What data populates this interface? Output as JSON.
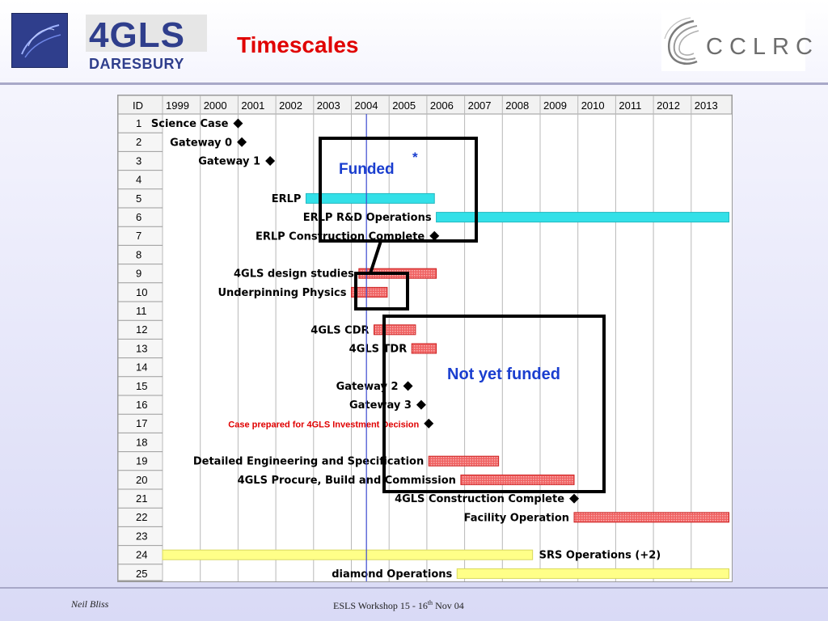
{
  "header": {
    "logo_left_big": "4GLS",
    "logo_left_small": "DARESBURY",
    "title": "Timescales",
    "logo_right_text": "CCLRC"
  },
  "gantt": {
    "id_header": "ID",
    "years": [
      "1999",
      "2000",
      "2001",
      "2002",
      "2003",
      "2004",
      "2005",
      "2006",
      "2007",
      "2008",
      "2009",
      "2010",
      "2011",
      "2012",
      "2013"
    ],
    "tasks": [
      {
        "id": "1",
        "label": "Science Case",
        "kind": "milestone",
        "at": 2001.0,
        "label_color": "#000000"
      },
      {
        "id": "2",
        "label": "Gateway 0",
        "kind": "milestone",
        "at": 2001.1,
        "label_color": "#000000"
      },
      {
        "id": "3",
        "label": "Gateway 1",
        "kind": "milestone",
        "at": 2001.85,
        "label_color": "#000000"
      },
      {
        "id": "4",
        "label": "",
        "kind": "none",
        "label_color": "#000000"
      },
      {
        "id": "5",
        "label": "ERLP",
        "kind": "bar",
        "start": 2002.8,
        "end": 2006.2,
        "color": "#33e0e8",
        "label_color": "#000000"
      },
      {
        "id": "6",
        "label": "ERLP R&D Operations",
        "kind": "bar",
        "start": 2006.25,
        "end": 2014.0,
        "color": "#33e0e8",
        "label_color": "#000000"
      },
      {
        "id": "7",
        "label": "ERLP Construction Complete",
        "kind": "milestone",
        "at": 2006.2,
        "label_color": "#000000"
      },
      {
        "id": "8",
        "label": "",
        "kind": "none",
        "label_color": "#000000"
      },
      {
        "id": "9",
        "label": "4GLS design studies",
        "kind": "bar",
        "start": 2004.2,
        "end": 2006.25,
        "color": "#f06262",
        "label_color": "#000000"
      },
      {
        "id": "10",
        "label": "Underpinning Physics",
        "kind": "bar",
        "start": 2004.0,
        "end": 2004.95,
        "color": "#f06262",
        "label_color": "#000000"
      },
      {
        "id": "11",
        "label": "",
        "kind": "none",
        "label_color": "#000000"
      },
      {
        "id": "12",
        "label": "4GLS CDR",
        "kind": "bar",
        "start": 2004.6,
        "end": 2005.7,
        "color": "#f06262",
        "label_color": "#000000"
      },
      {
        "id": "13",
        "label": "4GLS TDR",
        "kind": "bar",
        "start": 2005.6,
        "end": 2006.25,
        "color": "#f06262",
        "label_color": "#000000"
      },
      {
        "id": "14",
        "label": "",
        "kind": "none",
        "label_color": "#000000"
      },
      {
        "id": "15",
        "label": "Gateway 2",
        "kind": "milestone",
        "at": 2005.5,
        "label_color": "#000000"
      },
      {
        "id": "16",
        "label": "Gateway 3",
        "kind": "milestone",
        "at": 2005.85,
        "label_color": "#000000"
      },
      {
        "id": "17",
        "label": "Case prepared for 4GLS Investment Decision",
        "kind": "milestone",
        "at": 2006.05,
        "label_color": "#e00000"
      },
      {
        "id": "18",
        "label": "",
        "kind": "none",
        "label_color": "#000000"
      },
      {
        "id": "19",
        "label": "Detailed Engineering and Specification",
        "kind": "bar",
        "start": 2006.05,
        "end": 2007.9,
        "color": "#f06262",
        "label_color": "#000000"
      },
      {
        "id": "20",
        "label": "4GLS Procure, Build and Commission",
        "kind": "bar",
        "start": 2006.9,
        "end": 2009.9,
        "color": "#f06262",
        "label_color": "#000000"
      },
      {
        "id": "21",
        "label": "4GLS Construction Complete",
        "kind": "milestone",
        "at": 2009.9,
        "label_color": "#000000"
      },
      {
        "id": "22",
        "label": "Facility Operation",
        "kind": "bar",
        "start": 2009.9,
        "end": 2014.0,
        "color": "#f06262",
        "label_color": "#000000"
      },
      {
        "id": "23",
        "label": "",
        "kind": "none",
        "label_color": "#000000"
      },
      {
        "id": "24",
        "label": "SRS Operations (+2)",
        "kind": "bar",
        "start": 1999.0,
        "end": 2008.8,
        "color": "#ffff88",
        "label_color": "#000000"
      },
      {
        "id": "25",
        "label": "diamond Operations",
        "kind": "bar",
        "start": 2006.8,
        "end": 2014.0,
        "color": "#ffff88",
        "label_color": "#000000"
      }
    ],
    "today_line_year": 2004.4,
    "annotations": {
      "funded": "Funded",
      "funded_mark": "*",
      "not_funded": "Not yet funded",
      "annotation_color": "#1a3ecf"
    }
  },
  "footer": {
    "author": "Neil Bliss",
    "event_prefix": "ESLS Workshop  15 - 16",
    "event_sup": "th",
    "event_suffix": "  Nov 04"
  }
}
